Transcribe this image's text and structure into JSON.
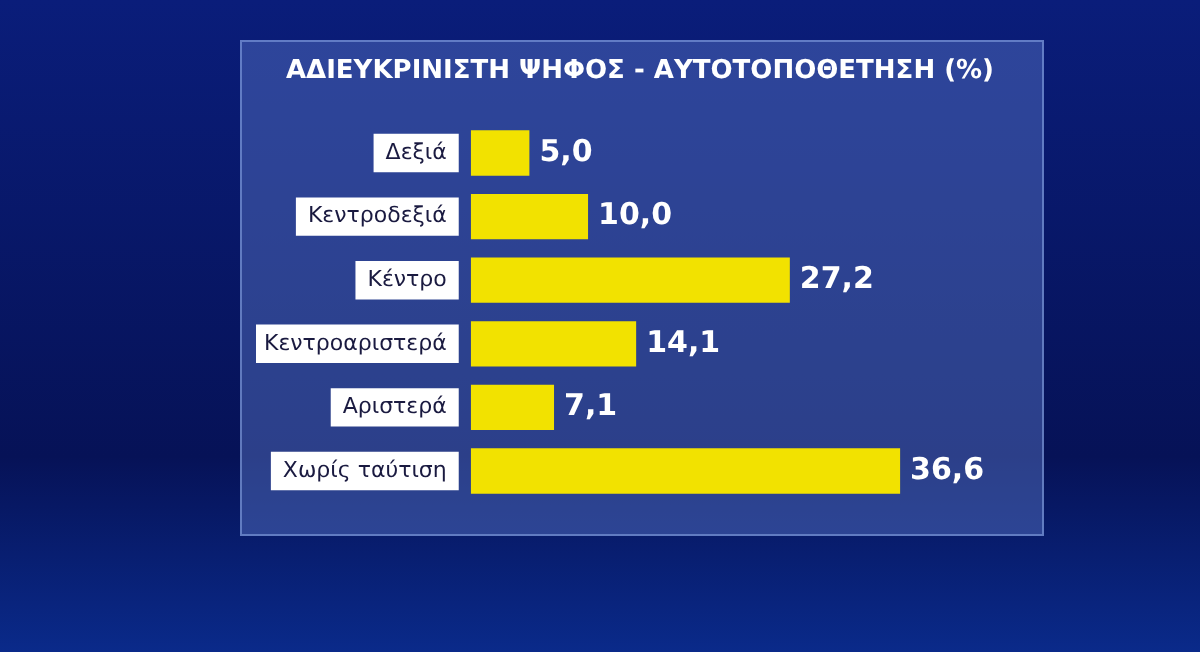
{
  "chart_data": {
    "type": "bar",
    "orientation": "horizontal",
    "title": "ΑΔΙΕΥΚΡΙΝΙΣΤΗ ΨΗΦΟΣ - ΑΥΤΟΤΟΠΟΘΕΤΗΣΗ (%)",
    "categories": [
      "Δεξιά",
      "Κεντροδεξιά",
      "Κέντρο",
      "Κεντροαριστερά",
      "Αριστερά",
      "Χωρίς ταύτιση"
    ],
    "values": [
      5.0,
      10.0,
      27.2,
      14.1,
      7.1,
      36.6
    ],
    "value_labels": [
      "5,0",
      "10,0",
      "27,2",
      "14,1",
      "7,1",
      "36,6"
    ],
    "color": "#f2e200",
    "grid": false,
    "legend": false,
    "tick_labels": "y"
  }
}
